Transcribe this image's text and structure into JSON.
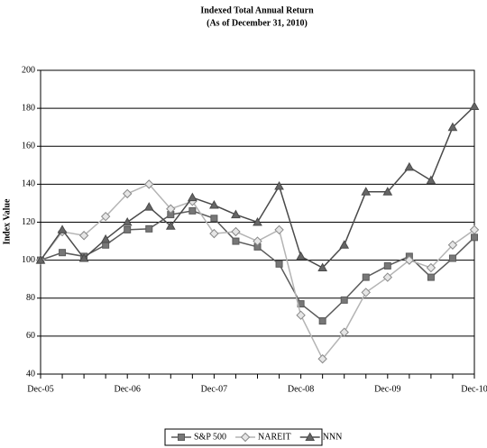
{
  "chart_data": {
    "type": "line",
    "title": "Indexed Total Annual Return",
    "subtitle": "(As of December 31, 2010)",
    "y_label": "Index Value",
    "categories": [
      "Dec-05",
      null,
      null,
      null,
      "Dec-06",
      null,
      null,
      null,
      "Dec-07",
      null,
      null,
      null,
      "Dec-08",
      null,
      null,
      null,
      "Dec-09",
      null,
      null,
      null,
      "Dec-10"
    ],
    "series": [
      {
        "name": "S&P 500",
        "color": "#5a5a5a",
        "marker": "square",
        "values": [
          100,
          104,
          102,
          108,
          116,
          116.5,
          124,
          126,
          122,
          110,
          107,
          98,
          77,
          68,
          79,
          91,
          97,
          102,
          91,
          101,
          112
        ]
      },
      {
        "name": "NAREIT",
        "color": "#b4b4b4",
        "marker": "diamond",
        "values": [
          100,
          115,
          113,
          123,
          135,
          140,
          127,
          131,
          114,
          115,
          110,
          116,
          71,
          48,
          62,
          83,
          91,
          100,
          96,
          108,
          116
        ]
      },
      {
        "name": "NNN",
        "color": "#4a4a4a",
        "marker": "triangle",
        "values": [
          100,
          116,
          101,
          111,
          120,
          128,
          118,
          133,
          129,
          124,
          120,
          139,
          102,
          96,
          108,
          136,
          136,
          149,
          142,
          170,
          181
        ]
      }
    ],
    "ylim": [
      40,
      200
    ],
    "yticks": [
      40,
      60,
      80,
      100,
      120,
      140,
      160,
      180,
      200
    ],
    "grid": true
  }
}
